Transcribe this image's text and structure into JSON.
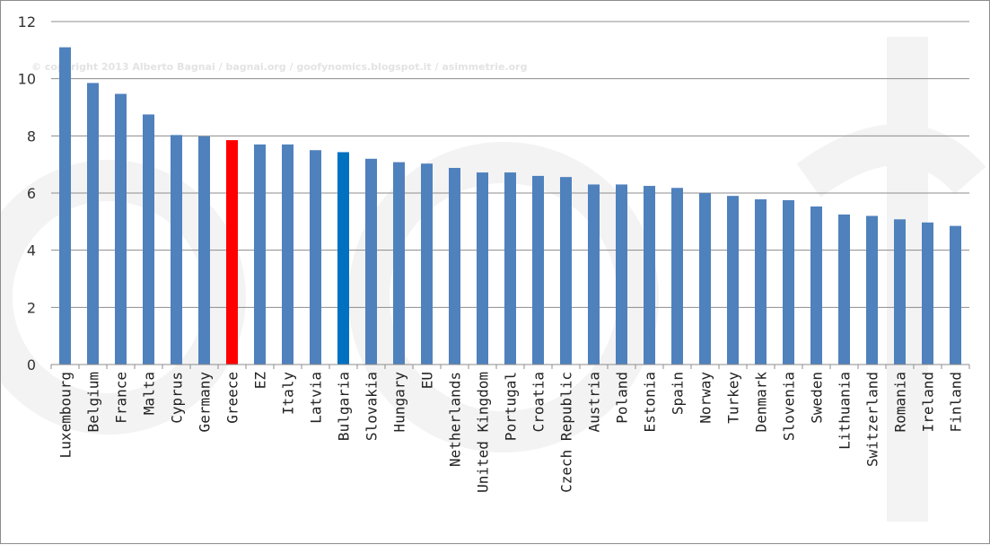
{
  "watermark": {
    "copyright": "© copyright 2013 Alberto Bagnai / bagnai.org / goofynomics.blogspot.it / asimmetrie.org"
  },
  "colors": {
    "default_bar": "#4F81BD",
    "greece_bar": "#FF0000",
    "bulgaria_bar": "#0070C0",
    "gridline": "#8C8C8C"
  },
  "chart_data": {
    "type": "bar",
    "title": "",
    "xlabel": "",
    "ylabel": "",
    "ylim": [
      0,
      12
    ],
    "yticks": [
      "0",
      "2",
      "4",
      "6",
      "8",
      "10",
      "12"
    ],
    "grid": true,
    "categories": [
      "Luxembourg",
      "Belgium",
      "France",
      "Malta",
      "Cyprus",
      "Germany",
      "Greece",
      "EZ",
      "Italy",
      "Latvia",
      "Bulgaria",
      "Slovakia",
      "Hungary",
      "EU",
      "Netherlands",
      "United Kingdom",
      "Portugal",
      "Croatia",
      "Czech Republic",
      "Austria",
      "Poland",
      "Estonia",
      "Spain",
      "Norway",
      "Turkey",
      "Denmark",
      "Slovenia",
      "Sweden",
      "Lithuania",
      "Switzerland",
      "Romania",
      "Ireland",
      "Finland"
    ],
    "values": [
      11.1,
      9.85,
      9.47,
      8.75,
      8.03,
      7.98,
      7.85,
      7.7,
      7.7,
      7.5,
      7.43,
      7.2,
      7.08,
      7.03,
      6.88,
      6.72,
      6.72,
      6.6,
      6.56,
      6.3,
      6.3,
      6.25,
      6.18,
      6.0,
      5.9,
      5.78,
      5.75,
      5.53,
      5.25,
      5.2,
      5.08,
      4.97,
      4.85
    ],
    "highlight": {
      "Greece": "greece_bar",
      "Bulgaria": "bulgaria_bar"
    }
  }
}
